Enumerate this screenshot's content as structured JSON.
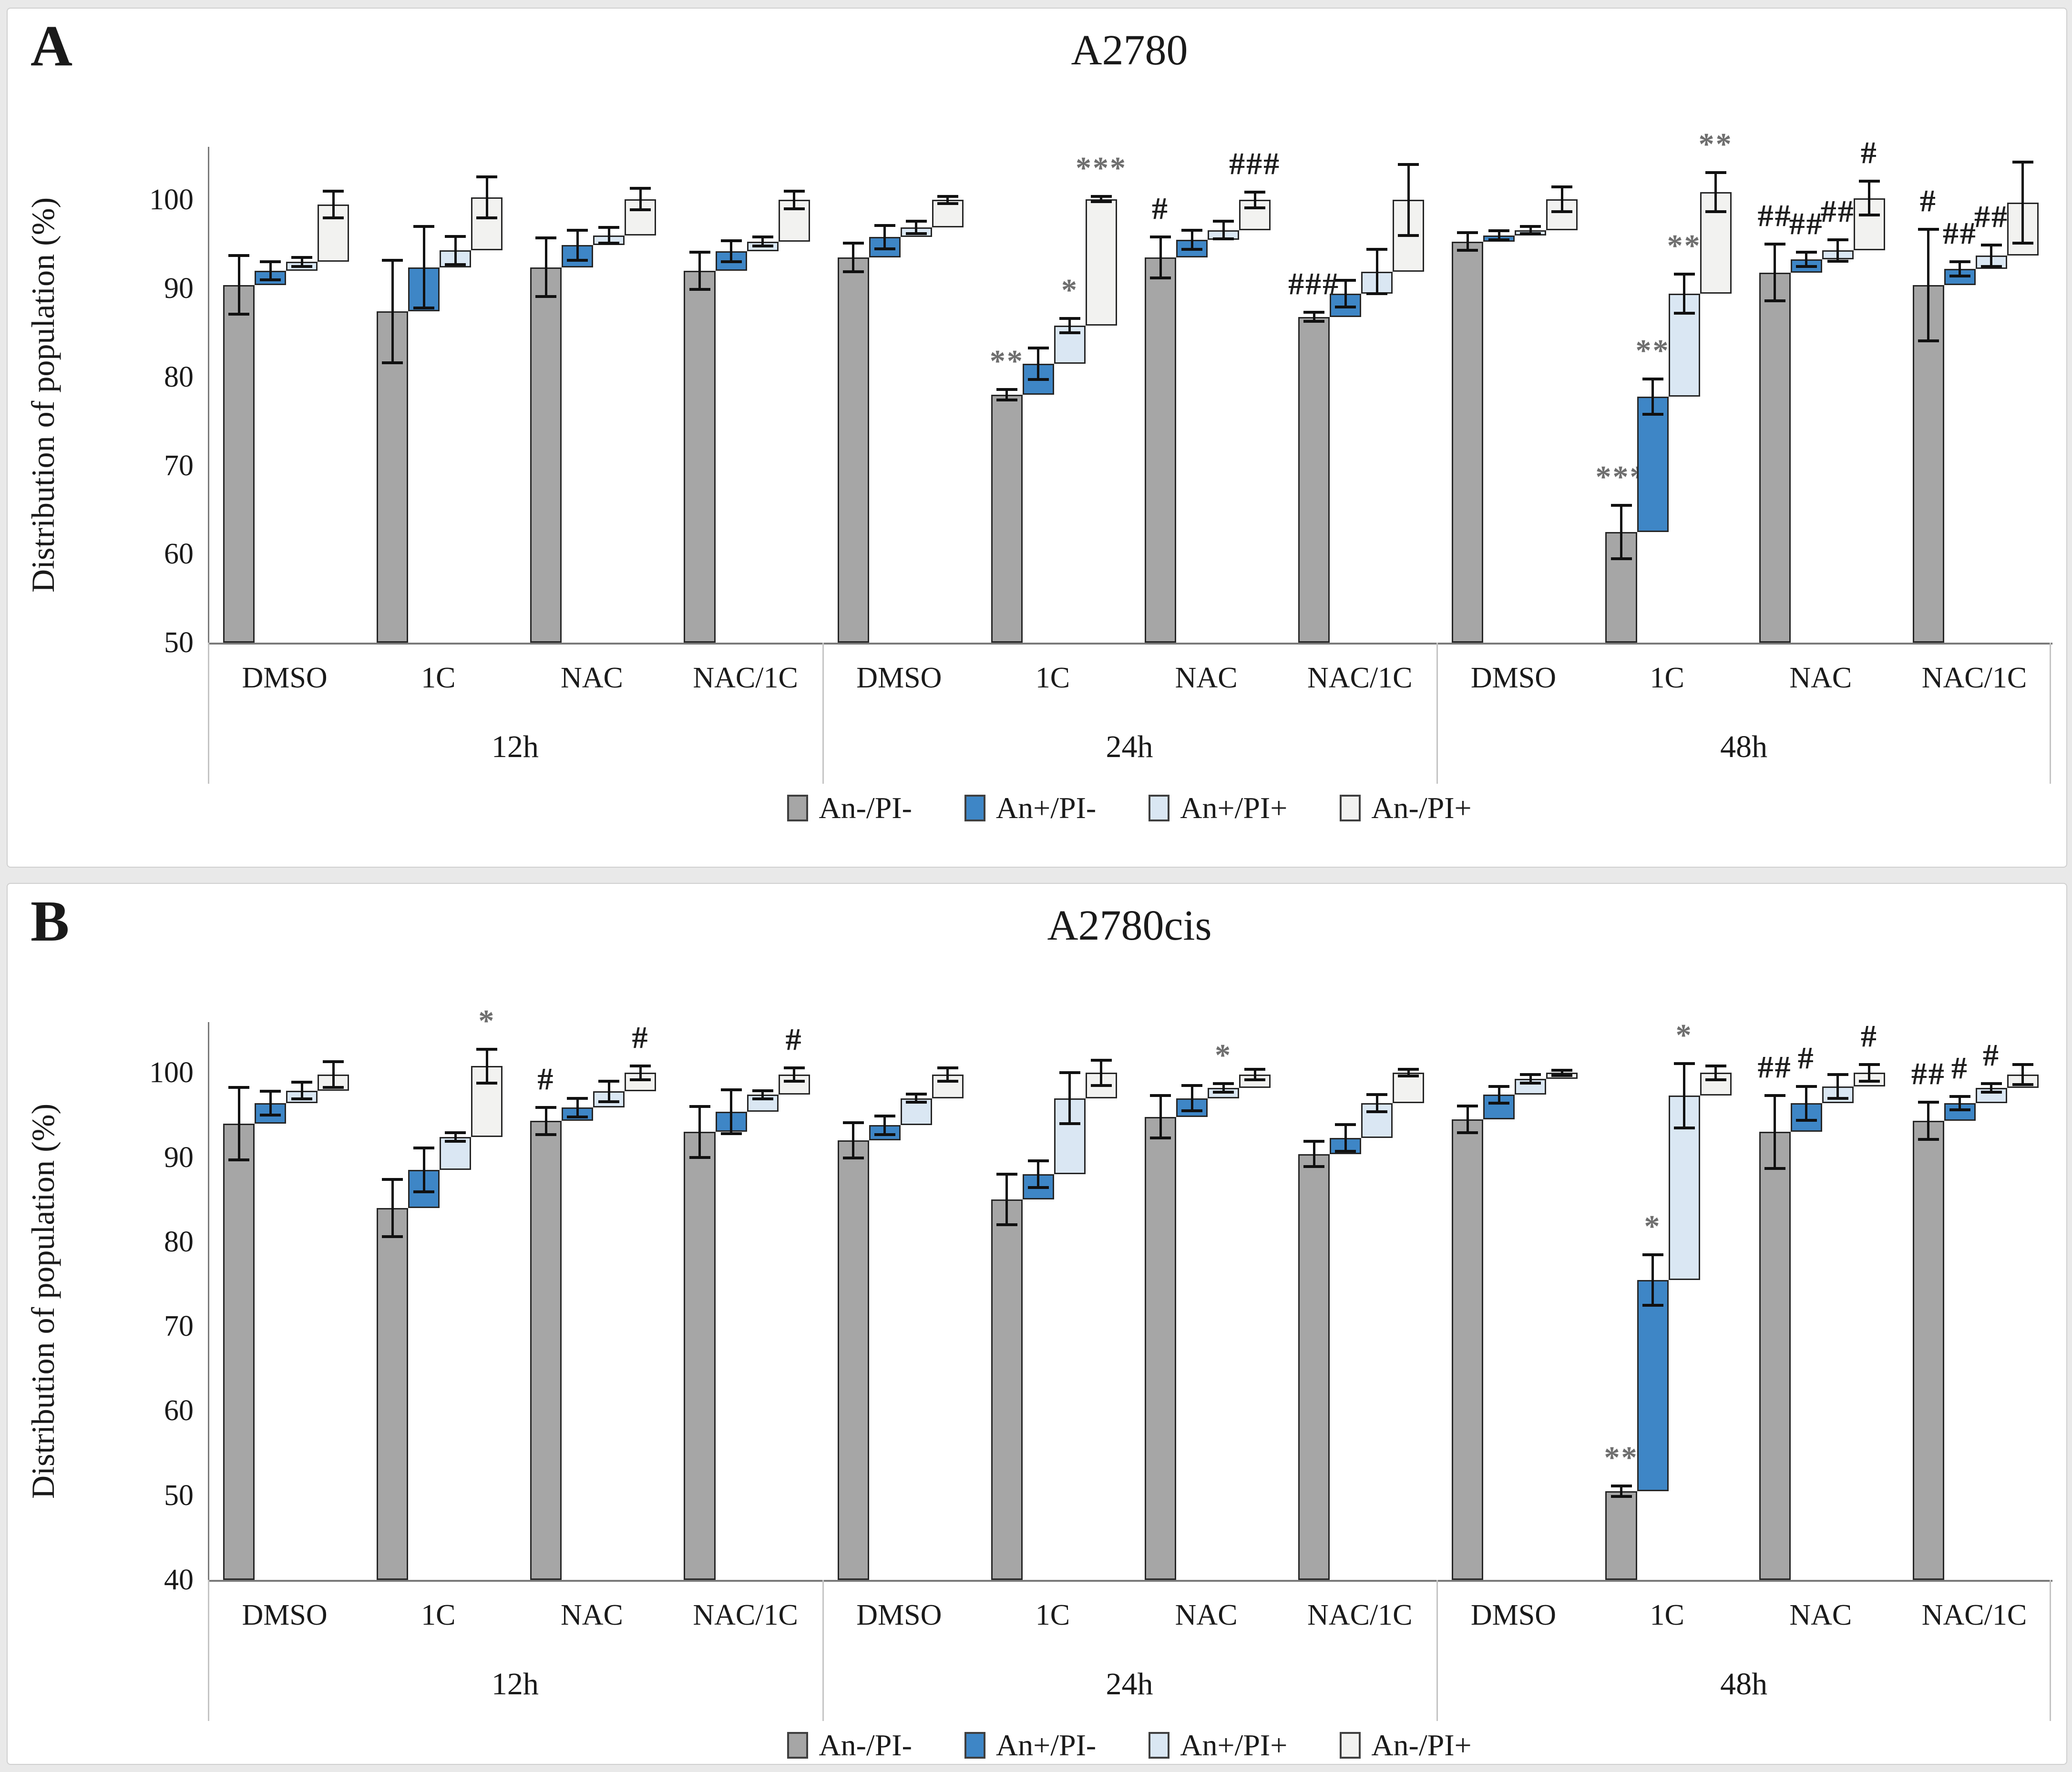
{
  "figure": {
    "background_color": "#e9e9e9",
    "axis_color": "#7a7a7a",
    "error_bar_color": "#111111",
    "divider_color": "#c4c4c4"
  },
  "chart_data": [
    {
      "type": "bar",
      "subtype": "cascade-waterfall-with-error-bars",
      "panel_label": "A",
      "title": "A2780",
      "ylabel": "Distribution of population (%)",
      "ylim": [
        50,
        106
      ],
      "yticks": [
        50,
        60,
        70,
        80,
        90,
        100
      ],
      "grid": false,
      "legend_position": "bottom-center",
      "series": [
        "An-/PI-",
        "An+/PI-",
        "An+/PI+",
        "An-/PI+"
      ],
      "series_colors": [
        "#a6a6a6",
        "#3e86c6",
        "#dae7f3",
        "#f2f2f0"
      ],
      "time_groups": [
        {
          "label": "12h",
          "conditions": [
            {
              "label": "DMSO",
              "tops": [
                90.4,
                92.0,
                93.0,
                99.5
              ],
              "errors": [
                3.3,
                1.0,
                0.5,
                1.5
              ],
              "markers": [
                "",
                "",
                "",
                ""
              ]
            },
            {
              "label": "1C",
              "tops": [
                87.4,
                92.4,
                94.3,
                100.3
              ],
              "errors": [
                5.8,
                4.6,
                1.6,
                2.3
              ],
              "markers": [
                "",
                "",
                "",
                ""
              ]
            },
            {
              "label": "NAC",
              "tops": [
                92.4,
                94.9,
                96.0,
                100.1
              ],
              "errors": [
                3.3,
                1.7,
                0.9,
                1.2
              ],
              "markers": [
                "",
                "",
                "",
                ""
              ]
            },
            {
              "label": "NAC/1C",
              "tops": [
                92.0,
                94.2,
                95.3,
                100.0
              ],
              "errors": [
                2.1,
                1.2,
                0.5,
                1.0
              ],
              "markers": [
                "",
                "",
                "",
                ""
              ]
            }
          ]
        },
        {
          "label": "24h",
          "conditions": [
            {
              "label": "DMSO",
              "tops": [
                93.5,
                95.8,
                96.9,
                100.0
              ],
              "errors": [
                1.6,
                1.3,
                0.7,
                0.4
              ],
              "markers": [
                "",
                "",
                "",
                ""
              ]
            },
            {
              "label": "1C",
              "tops": [
                78.0,
                81.5,
                85.8,
                100.1
              ],
              "errors": [
                0.6,
                1.8,
                0.8,
                0.3
              ],
              "markers": [
                "**",
                "",
                "*",
                "***"
              ]
            },
            {
              "label": "NAC",
              "tops": [
                93.5,
                95.5,
                96.6,
                100.0
              ],
              "errors": [
                2.3,
                1.1,
                1.0,
                0.9
              ],
              "markers": [
                "#",
                "",
                "",
                "###"
              ]
            },
            {
              "label": "NAC/1C",
              "tops": [
                86.8,
                89.4,
                91.9,
                100.0
              ],
              "errors": [
                0.5,
                1.5,
                2.5,
                4.0
              ],
              "markers": [
                "###",
                "",
                "",
                ""
              ]
            }
          ]
        },
        {
          "label": "48h",
          "conditions": [
            {
              "label": "DMSO",
              "tops": [
                95.3,
                96.0,
                96.6,
                100.1
              ],
              "errors": [
                1.0,
                0.5,
                0.4,
                1.4
              ],
              "markers": [
                "",
                "",
                "",
                ""
              ]
            },
            {
              "label": "1C",
              "tops": [
                62.5,
                77.8,
                89.4,
                100.9
              ],
              "errors": [
                3.0,
                2.0,
                2.2,
                2.2
              ],
              "markers": [
                "***",
                "**",
                "**",
                "**"
              ]
            },
            {
              "label": "NAC",
              "tops": [
                91.8,
                93.3,
                94.3,
                100.2
              ],
              "errors": [
                3.2,
                0.8,
                1.2,
                1.9
              ],
              "markers": [
                "##",
                "##",
                "##",
                "#"
              ]
            },
            {
              "label": "NAC/1C",
              "tops": [
                90.4,
                92.2,
                93.7,
                99.7
              ],
              "errors": [
                6.3,
                0.8,
                1.2,
                4.6
              ],
              "markers": [
                "#",
                "##",
                "##",
                ""
              ]
            }
          ]
        }
      ]
    },
    {
      "type": "bar",
      "subtype": "cascade-waterfall-with-error-bars",
      "panel_label": "B",
      "title": "A2780cis",
      "ylabel": "Distribution of population (%)",
      "ylim": [
        40,
        106
      ],
      "yticks": [
        40,
        50,
        60,
        70,
        80,
        90,
        100
      ],
      "grid": false,
      "legend_position": "bottom-center",
      "series": [
        "An-/PI-",
        "An+/PI-",
        "An+/PI+",
        "An-/PI+"
      ],
      "series_colors": [
        "#a6a6a6",
        "#3e86c6",
        "#dae7f3",
        "#f2f2f0"
      ],
      "time_groups": [
        {
          "label": "12h",
          "conditions": [
            {
              "label": "DMSO",
              "tops": [
                94.0,
                96.4,
                97.9,
                99.8
              ],
              "errors": [
                4.3,
                1.4,
                1.0,
                1.5
              ],
              "markers": [
                "",
                "",
                "",
                ""
              ]
            },
            {
              "label": "1C",
              "tops": [
                84.0,
                88.5,
                92.4,
                100.8
              ],
              "errors": [
                3.4,
                2.6,
                0.5,
                2.0
              ],
              "markers": [
                "",
                "",
                "",
                "*"
              ]
            },
            {
              "label": "NAC",
              "tops": [
                94.3,
                95.9,
                97.8,
                100.0
              ],
              "errors": [
                1.6,
                1.1,
                1.2,
                0.8
              ],
              "markers": [
                "#",
                "",
                "",
                "#"
              ]
            },
            {
              "label": "NAC/1C",
              "tops": [
                93.0,
                95.4,
                97.4,
                99.8
              ],
              "errors": [
                3.0,
                2.6,
                0.5,
                0.8
              ],
              "markers": [
                "",
                "",
                "",
                "#"
              ]
            }
          ]
        },
        {
          "label": "24h",
          "conditions": [
            {
              "label": "DMSO",
              "tops": [
                92.0,
                93.8,
                97.0,
                99.8
              ],
              "errors": [
                2.1,
                1.1,
                0.5,
                0.8
              ],
              "markers": [
                "",
                "",
                "",
                ""
              ]
            },
            {
              "label": "1C",
              "tops": [
                85.0,
                88.0,
                97.0,
                100.0
              ],
              "errors": [
                3.0,
                1.6,
                3.0,
                1.5
              ],
              "markers": [
                "",
                "",
                "",
                ""
              ]
            },
            {
              "label": "NAC",
              "tops": [
                94.8,
                97.0,
                98.2,
                99.8
              ],
              "errors": [
                2.5,
                1.5,
                0.5,
                0.6
              ],
              "markers": [
                "",
                "",
                "*",
                ""
              ]
            },
            {
              "label": "NAC/1C",
              "tops": [
                90.4,
                92.3,
                96.4,
                100.0
              ],
              "errors": [
                1.5,
                1.6,
                1.0,
                0.4
              ],
              "markers": [
                "",
                "",
                "",
                ""
              ]
            }
          ]
        },
        {
          "label": "48h",
          "conditions": [
            {
              "label": "DMSO",
              "tops": [
                94.5,
                97.4,
                99.3,
                100.0
              ],
              "errors": [
                1.6,
                1.0,
                0.5,
                0.3
              ],
              "markers": [
                "",
                "",
                "",
                ""
              ]
            },
            {
              "label": "1C",
              "tops": [
                50.5,
                75.5,
                97.3,
                100.0
              ],
              "errors": [
                0.6,
                3.0,
                3.8,
                0.8
              ],
              "markers": [
                "**",
                "*",
                "*",
                ""
              ]
            },
            {
              "label": "NAC",
              "tops": [
                93.0,
                96.4,
                98.4,
                100.0
              ],
              "errors": [
                4.3,
                2.0,
                1.4,
                1.0
              ],
              "markers": [
                "##",
                "#",
                "",
                "#"
              ]
            },
            {
              "label": "NAC/1C",
              "tops": [
                94.3,
                96.4,
                98.2,
                99.8
              ],
              "errors": [
                2.2,
                0.8,
                0.5,
                1.2
              ],
              "markers": [
                "##",
                "#",
                "#",
                ""
              ]
            }
          ]
        }
      ]
    }
  ]
}
